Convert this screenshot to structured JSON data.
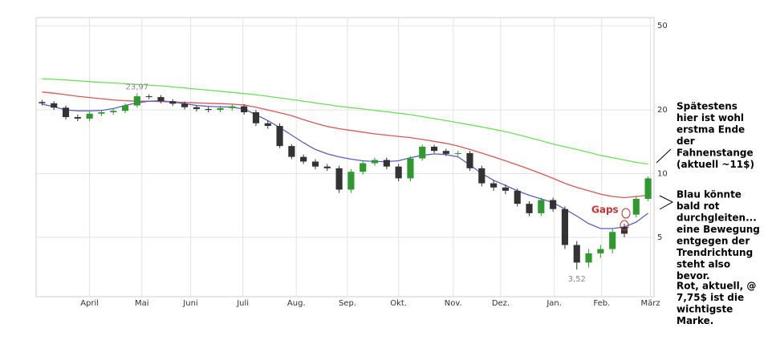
{
  "chart_data": {
    "type": "candlestick",
    "log_scale": true,
    "grid": true,
    "xlim": [
      0,
      52
    ],
    "ylim": [
      2.62,
      54.6
    ],
    "yticks": [
      5,
      10,
      20,
      50
    ],
    "xticks": [
      {
        "value": 4.5,
        "label": "April"
      },
      {
        "value": 8.9,
        "label": "Mai"
      },
      {
        "value": 13.0,
        "label": "Juni"
      },
      {
        "value": 17.4,
        "label": "Juli"
      },
      {
        "value": 21.9,
        "label": "Aug."
      },
      {
        "value": 26.2,
        "label": "Sep."
      },
      {
        "value": 30.5,
        "label": "Okt."
      },
      {
        "value": 35.1,
        "label": "Nov."
      },
      {
        "value": 39.1,
        "label": "Dez."
      },
      {
        "value": 43.6,
        "label": "Jan."
      },
      {
        "value": 47.6,
        "label": "Feb."
      },
      {
        "value": 51.7,
        "label": "März"
      }
    ],
    "up_color": "#2e9a2e",
    "down_color": "#333333",
    "x": [
      0.5,
      1.5,
      2.5,
      3.5,
      4.5,
      5.5,
      6.5,
      7.5,
      8.5,
      9.5,
      10.5,
      11.5,
      12.5,
      13.5,
      14.5,
      15.5,
      16.5,
      17.5,
      18.5,
      19.5,
      20.5,
      21.5,
      22.5,
      23.5,
      24.5,
      25.5,
      26.5,
      27.5,
      28.5,
      29.5,
      30.5,
      31.5,
      32.5,
      33.5,
      34.5,
      35.5,
      36.5,
      37.5,
      38.5,
      39.5,
      40.5,
      41.5,
      42.5,
      43.5,
      44.5,
      45.5,
      46.5,
      47.5,
      48.5,
      49.5,
      50.5,
      51.5
    ],
    "open": [
      21.8,
      21.5,
      20.5,
      18.5,
      18.2,
      19.2,
      19.5,
      19.8,
      21.0,
      23.2,
      23.0,
      22.0,
      21.4,
      20.6,
      20.2,
      20.0,
      20.4,
      20.8,
      19.5,
      17.3,
      16.8,
      13.5,
      12.0,
      11.4,
      10.8,
      10.6,
      8.4,
      10.2,
      11.2,
      11.6,
      10.8,
      9.5,
      11.8,
      13.4,
      12.8,
      12.4,
      12.5,
      10.6,
      9.0,
      8.6,
      8.3,
      7.2,
      6.5,
      7.5,
      6.8,
      4.6,
      3.8,
      4.2,
      4.4,
      5.6,
      6.4,
      7.6
    ],
    "high": [
      22.3,
      22.0,
      21.0,
      19.0,
      19.7,
      20.0,
      20.3,
      21.5,
      23.97,
      23.7,
      23.5,
      22.5,
      21.9,
      21.1,
      20.7,
      20.9,
      21.3,
      21.3,
      20.0,
      17.8,
      17.3,
      13.8,
      12.3,
      11.7,
      11.1,
      10.9,
      10.5,
      11.5,
      11.9,
      11.9,
      11.1,
      12.1,
      13.7,
      13.7,
      13.1,
      12.8,
      12.8,
      10.9,
      9.3,
      8.9,
      8.5,
      7.4,
      7.7,
      7.7,
      7.0,
      4.8,
      4.4,
      4.6,
      5.5,
      5.8,
      7.8,
      9.7
    ],
    "low": [
      21.0,
      20.0,
      18.0,
      17.7,
      17.7,
      18.7,
      19.0,
      19.3,
      20.5,
      22.5,
      21.5,
      20.9,
      20.1,
      19.7,
      19.5,
      19.5,
      19.9,
      19.0,
      16.8,
      16.3,
      13.2,
      11.7,
      11.1,
      10.5,
      10.3,
      8.1,
      8.1,
      9.9,
      10.9,
      10.5,
      9.2,
      9.2,
      11.5,
      12.5,
      12.1,
      12.1,
      10.3,
      8.7,
      8.3,
      8.0,
      7.0,
      6.3,
      6.3,
      6.6,
      4.4,
      3.52,
      3.6,
      4.0,
      4.2,
      5.0,
      6.2,
      7.4
    ],
    "close": [
      21.5,
      20.5,
      18.5,
      18.2,
      19.2,
      19.5,
      19.8,
      21.0,
      23.2,
      23.0,
      22.0,
      21.4,
      20.6,
      20.2,
      20.0,
      20.4,
      20.8,
      19.5,
      17.3,
      16.8,
      13.5,
      12.0,
      11.4,
      10.8,
      10.6,
      8.4,
      10.2,
      11.2,
      11.6,
      10.8,
      9.5,
      11.8,
      13.4,
      12.8,
      12.4,
      12.5,
      10.6,
      9.0,
      8.6,
      8.3,
      7.2,
      6.5,
      7.5,
      6.8,
      4.6,
      3.8,
      4.2,
      4.4,
      5.3,
      5.2,
      7.6,
      9.5
    ],
    "lines": [
      {
        "color": "#6be05a",
        "values": [
          28.1,
          27.9,
          27.7,
          27.5,
          27.2,
          27.0,
          26.8,
          26.6,
          26.4,
          26.2,
          26.0,
          25.7,
          25.4,
          25.1,
          24.8,
          24.5,
          24.2,
          23.9,
          23.6,
          23.2,
          22.8,
          22.4,
          22.0,
          21.6,
          21.2,
          20.8,
          20.5,
          20.2,
          19.9,
          19.6,
          19.3,
          19.0,
          18.6,
          18.2,
          17.8,
          17.4,
          17.0,
          16.6,
          16.2,
          15.8,
          15.3,
          14.8,
          14.3,
          13.8,
          13.4,
          13.0,
          12.6,
          12.2,
          11.9,
          11.6,
          11.3,
          11.1
        ]
      },
      {
        "color": "#e05555",
        "values": [
          24.3,
          24.0,
          23.6,
          23.2,
          22.9,
          22.6,
          22.3,
          22.1,
          22.0,
          22.0,
          21.9,
          21.8,
          21.7,
          21.6,
          21.5,
          21.4,
          21.3,
          21.1,
          20.6,
          20.0,
          19.4,
          18.8,
          18.0,
          17.3,
          16.7,
          16.3,
          16.0,
          15.7,
          15.4,
          15.2,
          15.0,
          14.8,
          14.5,
          14.2,
          13.9,
          13.5,
          13.0,
          12.5,
          12.0,
          11.5,
          11.0,
          10.5,
          10.0,
          9.5,
          9.0,
          8.6,
          8.3,
          8.0,
          7.8,
          7.7,
          7.8,
          7.9
        ]
      },
      {
        "color": "#5560cc",
        "values": [
          21.3,
          20.7,
          20.0,
          19.8,
          19.8,
          19.9,
          20.3,
          21.0,
          21.6,
          22.0,
          22.1,
          21.8,
          21.4,
          21.0,
          20.8,
          20.7,
          20.6,
          20.2,
          19.0,
          17.8,
          16.5,
          15.2,
          14.0,
          13.0,
          12.4,
          12.0,
          11.7,
          11.5,
          11.4,
          11.4,
          11.5,
          11.9,
          12.2,
          12.4,
          12.3,
          12.0,
          11.0,
          10.0,
          9.3,
          8.8,
          8.3,
          7.9,
          7.6,
          7.3,
          6.8,
          6.3,
          5.8,
          5.5,
          5.5,
          5.6,
          5.9,
          6.5
        ]
      }
    ],
    "annotations": {
      "high_label": "23,97",
      "low_label": "3,52",
      "gaps": "Gaps"
    },
    "notes": [
      [
        "Spätestens",
        "hier ist wohl",
        "erstma Ende",
        "der",
        "Fahnenstange",
        "(aktuell ~11$)"
      ],
      [
        "Blau könnte",
        "bald rot",
        "durchgleiten...",
        "eine Bewegung",
        "entgegen der",
        "Trendrichtung",
        "steht also",
        "bevor."
      ],
      [
        "Rot, aktuell, @",
        "7,75$ ist die",
        "wichtigste",
        "Marke."
      ]
    ]
  }
}
